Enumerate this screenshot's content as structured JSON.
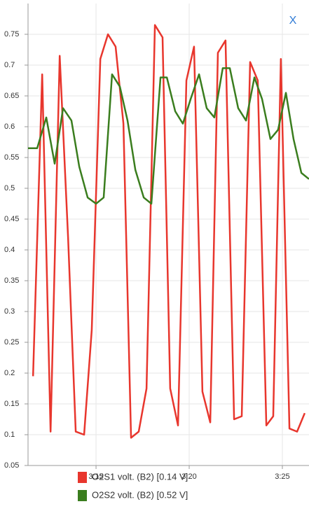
{
  "close_label": "X",
  "chart_data": {
    "type": "line",
    "xlim": [
      11.35,
      26.43
    ],
    "xticks": [
      {
        "value": 15,
        "label": "3:15"
      },
      {
        "value": 20,
        "label": "3:20"
      },
      {
        "value": 25,
        "label": "3:25"
      }
    ],
    "ylim": [
      0.05,
      0.8
    ],
    "yticks": [
      0.05,
      0.1,
      0.15,
      0.2,
      0.25,
      0.3,
      0.35,
      0.4,
      0.45,
      0.5,
      0.55,
      0.6,
      0.65,
      0.7,
      0.75
    ],
    "grid": true,
    "series": [
      {
        "name": "O2S1 volt. (B2) [0.14 V]",
        "color": "#e8362d",
        "x": [
          11.62,
          12.11,
          12.56,
          13.05,
          13.5,
          13.91,
          14.36,
          14.77,
          15.23,
          15.64,
          16.05,
          16.47,
          16.88,
          17.29,
          17.71,
          18.16,
          18.57,
          18.98,
          19.4,
          19.85,
          20.26,
          20.71,
          21.13,
          21.54,
          21.95,
          22.41,
          22.82,
          23.27,
          23.68,
          24.14,
          24.51,
          24.92,
          25.38,
          25.79,
          26.2
        ],
        "values": [
          0.195,
          0.685,
          0.105,
          0.715,
          0.42,
          0.105,
          0.1,
          0.27,
          0.71,
          0.75,
          0.73,
          0.605,
          0.095,
          0.105,
          0.175,
          0.765,
          0.745,
          0.175,
          0.115,
          0.675,
          0.73,
          0.17,
          0.12,
          0.72,
          0.74,
          0.125,
          0.13,
          0.705,
          0.675,
          0.115,
          0.13,
          0.71,
          0.11,
          0.105,
          0.135
        ]
      },
      {
        "name": "O2S2 volt. (B2) [0.52 V]",
        "color": "#3a7d1e",
        "x": [
          11.35,
          11.84,
          12.33,
          12.78,
          13.23,
          13.68,
          14.1,
          14.55,
          15.0,
          15.41,
          15.86,
          16.28,
          16.69,
          17.11,
          17.56,
          17.97,
          18.46,
          18.8,
          19.25,
          19.66,
          20.08,
          20.53,
          20.94,
          21.35,
          21.8,
          22.18,
          22.63,
          23.05,
          23.5,
          23.91,
          24.36,
          24.77,
          25.19,
          25.6,
          26.02,
          26.43
        ],
        "values": [
          0.565,
          0.565,
          0.615,
          0.54,
          0.63,
          0.61,
          0.535,
          0.485,
          0.475,
          0.485,
          0.685,
          0.665,
          0.61,
          0.53,
          0.485,
          0.475,
          0.68,
          0.68,
          0.625,
          0.605,
          0.645,
          0.685,
          0.63,
          0.615,
          0.695,
          0.695,
          0.63,
          0.61,
          0.68,
          0.645,
          0.58,
          0.595,
          0.655,
          0.58,
          0.525,
          0.515
        ]
      }
    ]
  }
}
